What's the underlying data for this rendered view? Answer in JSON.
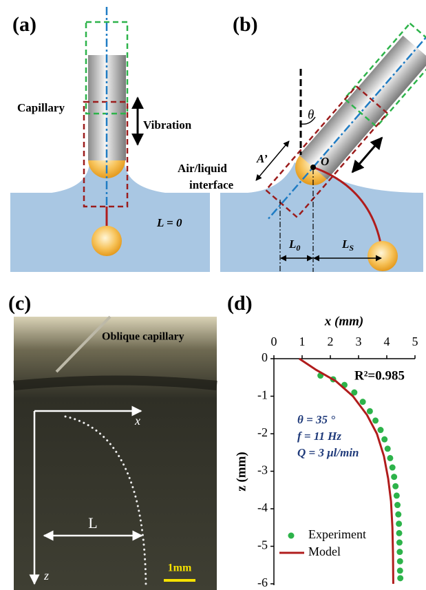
{
  "panel_a": {
    "label": "(a)",
    "capillary": "Capillary",
    "vibration": "Vibration",
    "length": "L = 0"
  },
  "panel_b": {
    "label": "(b)",
    "theta": "θ",
    "a_prime": "A’",
    "origin": "O",
    "interface_1": "Air/liquid",
    "interface_2": "interface",
    "l0_main": "L",
    "l0_sub": "0",
    "ls_main": "L",
    "ls_sub": "S"
  },
  "panel_c": {
    "label": "(c)",
    "oblique": "Oblique capillary",
    "x": "x",
    "z": "z",
    "length": "L",
    "scale": "1mm"
  },
  "chart_data": {
    "type": "scatter",
    "label": "(d)",
    "xlabel": "x (mm)",
    "ylabel": "z (mm)",
    "annotation": "R²=0.985",
    "params": [
      "θ = 35 °",
      "f = 11 Hz",
      "Q = 3 μl/min"
    ],
    "xlim": [
      0,
      5
    ],
    "xticks": [
      0,
      1,
      2,
      3,
      4,
      5
    ],
    "ylim": [
      -6,
      0
    ],
    "yticks": [
      0,
      -1,
      -2,
      -3,
      -4,
      -5,
      -6
    ],
    "legend": "lower left",
    "series": [
      {
        "name": "Experiment",
        "mode": "markers",
        "color": "#2db34a",
        "x": [
          1.65,
          2.1,
          2.5,
          2.85,
          3.15,
          3.4,
          3.6,
          3.78,
          3.92,
          4.03,
          4.12,
          4.2,
          4.26,
          4.31,
          4.35,
          4.38,
          4.41,
          4.43,
          4.44,
          4.45,
          4.46,
          4.47,
          4.47,
          4.48
        ],
        "values": [
          -0.45,
          -0.55,
          -0.7,
          -0.9,
          -1.15,
          -1.4,
          -1.65,
          -1.9,
          -2.15,
          -2.4,
          -2.65,
          -2.9,
          -3.15,
          -3.4,
          -3.65,
          -3.9,
          -4.15,
          -4.4,
          -4.65,
          -4.9,
          -5.15,
          -5.4,
          -5.65,
          -5.85
        ]
      },
      {
        "name": "Model",
        "mode": "line",
        "color": "#b01c1c",
        "x": [
          0.9,
          1.5,
          2.2,
          2.8,
          3.3,
          3.65,
          3.9,
          4.05,
          4.15,
          4.2,
          4.22,
          4.23
        ],
        "values": [
          0,
          -0.3,
          -0.6,
          -1.0,
          -1.5,
          -2.0,
          -2.6,
          -3.2,
          -3.8,
          -4.5,
          -5.2,
          -6
        ]
      }
    ]
  }
}
